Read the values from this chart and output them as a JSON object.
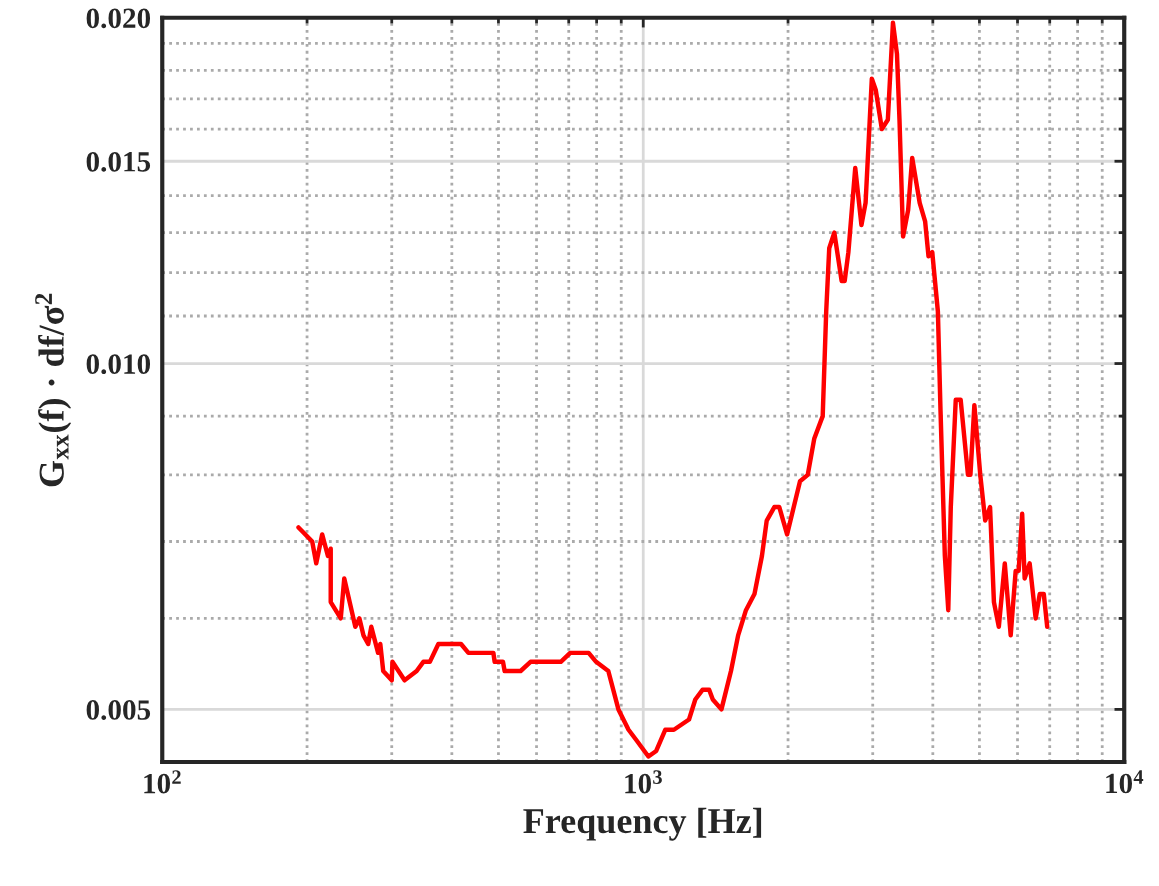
{
  "chart_data": {
    "type": "line",
    "xlabel": "Frequency [Hz]",
    "ylabel": "G$_{xx}$(f) · df/σ$^{2}$",
    "log": "xy",
    "grid": true,
    "line_style": "solid",
    "marker": "none",
    "xlim": [
      100,
      10000
    ],
    "ylim": [
      0.0045,
      0.02
    ],
    "xticks": [
      {
        "value": 100,
        "label": "10$^{2}$"
      },
      {
        "value": 200,
        "label": null
      },
      {
        "value": 300,
        "label": null
      },
      {
        "value": 400,
        "label": null
      },
      {
        "value": 500,
        "label": null
      },
      {
        "value": 600,
        "label": null
      },
      {
        "value": 700,
        "label": null
      },
      {
        "value": 800,
        "label": null
      },
      {
        "value": 900,
        "label": null
      },
      {
        "value": 1000,
        "label": "10$^{3}$"
      },
      {
        "value": 2000,
        "label": null
      },
      {
        "value": 3000,
        "label": null
      },
      {
        "value": 4000,
        "label": null
      },
      {
        "value": 5000,
        "label": null
      },
      {
        "value": 6000,
        "label": null
      },
      {
        "value": 7000,
        "label": null
      },
      {
        "value": 8000,
        "label": null
      },
      {
        "value": 9000,
        "label": null
      },
      {
        "value": 10000,
        "label": "10$^{4}$"
      }
    ],
    "yticks": [
      {
        "value": 0.005,
        "label": "0.005"
      },
      {
        "value": 0.006,
        "label": null
      },
      {
        "value": 0.007,
        "label": null
      },
      {
        "value": 0.008,
        "label": null
      },
      {
        "value": 0.009,
        "label": null
      },
      {
        "value": 0.01,
        "label": "0.010"
      },
      {
        "value": 0.011,
        "label": null
      },
      {
        "value": 0.012,
        "label": null
      },
      {
        "value": 0.013,
        "label": null
      },
      {
        "value": 0.014,
        "label": null
      },
      {
        "value": 0.015,
        "label": "0.015"
      },
      {
        "value": 0.016,
        "label": null
      },
      {
        "value": 0.017,
        "label": null
      },
      {
        "value": 0.018,
        "label": null
      },
      {
        "value": 0.019,
        "label": null
      },
      {
        "value": 0.02,
        "label": "0.020"
      }
    ],
    "series": [
      {
        "color": "#ff0000",
        "x": [
          192,
          205,
          209,
          215,
          221,
          224,
          224,
          235,
          239,
          252,
          257,
          262,
          268,
          272,
          281,
          284,
          288,
          300,
          301,
          319,
          338,
          349,
          360,
          375,
          398,
          418,
          433,
          488,
          491,
          511,
          515,
          556,
          583,
          605,
          632,
          674,
          705,
          770,
          798,
          846,
          888,
          932,
          968,
          1025,
          1064,
          1111,
          1158,
          1245,
          1283,
          1328,
          1371,
          1395,
          1454,
          1522,
          1575,
          1635,
          1703,
          1765,
          1806,
          1873,
          1918,
          1991,
          2118,
          2198,
          2267,
          2361,
          2401,
          2436,
          2496,
          2585,
          2623,
          2670,
          2759,
          2842,
          2899,
          2987,
          3044,
          3134,
          3225,
          3305,
          3369,
          3410,
          3469,
          3554,
          3624,
          3756,
          3855,
          3918,
          3989,
          4098,
          4150,
          4237,
          4307,
          4359,
          4464,
          4570,
          4733,
          4789,
          4880,
          5020,
          5140,
          5261,
          5359,
          5486,
          5645,
          5807,
          5947,
          6033,
          6135,
          6208,
          6359,
          6545,
          6673,
          6804,
          6916
        ],
        "values": [
          0.0072,
          0.007,
          0.0067,
          0.0071,
          0.0068,
          0.0069,
          0.0062,
          0.006,
          0.0065,
          0.0059,
          0.006,
          0.0058,
          0.0057,
          0.0059,
          0.0056,
          0.0057,
          0.0054,
          0.0053,
          0.0055,
          0.0053,
          0.0054,
          0.0055,
          0.0055,
          0.0057,
          0.0057,
          0.0057,
          0.0056,
          0.0056,
          0.0055,
          0.0055,
          0.0054,
          0.0054,
          0.0055,
          0.0055,
          0.0055,
          0.0055,
          0.0056,
          0.0056,
          0.0055,
          0.0054,
          0.005,
          0.0048,
          0.0047,
          0.00455,
          0.0046,
          0.0048,
          0.0048,
          0.0049,
          0.0051,
          0.0052,
          0.0052,
          0.0051,
          0.005,
          0.0054,
          0.0058,
          0.0061,
          0.0063,
          0.0068,
          0.0073,
          0.0075,
          0.0075,
          0.0071,
          0.0079,
          0.008,
          0.0086,
          0.009,
          0.0111,
          0.0126,
          0.013,
          0.0118,
          0.0118,
          0.0125,
          0.0148,
          0.0132,
          0.0138,
          0.0177,
          0.0173,
          0.016,
          0.0163,
          0.0198,
          0.0186,
          0.0163,
          0.0129,
          0.0136,
          0.0151,
          0.0138,
          0.0133,
          0.0124,
          0.0125,
          0.0111,
          0.0091,
          0.0068,
          0.0061,
          0.0075,
          0.0093,
          0.0093,
          0.008,
          0.008,
          0.0092,
          0.008,
          0.0073,
          0.0075,
          0.0062,
          0.0059,
          0.0067,
          0.0058,
          0.0066,
          0.0066,
          0.0074,
          0.0065,
          0.0067,
          0.006,
          0.0063,
          0.0063,
          0.0059
        ]
      }
    ]
  }
}
